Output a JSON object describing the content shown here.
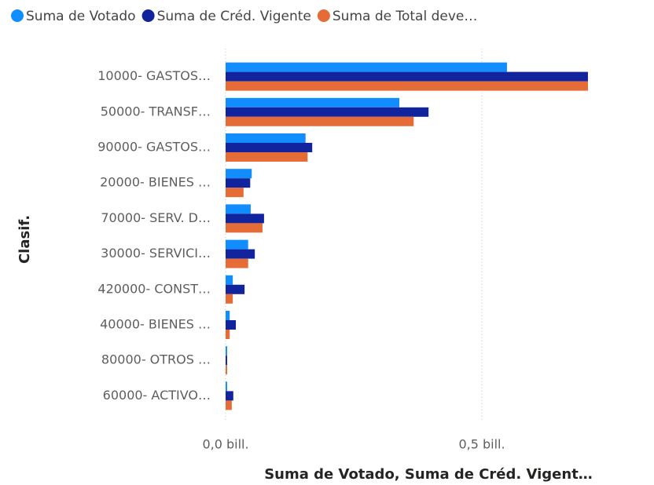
{
  "chart_data": {
    "type": "bar",
    "orientation": "horizontal",
    "categories": [
      "10000- GASTOS…",
      "50000- TRANSF…",
      "90000- GASTOS…",
      "20000- BIENES …",
      "70000- SERV. D…",
      "30000- SERVICI…",
      "420000- CONST…",
      "40000- BIENES …",
      "80000- OTROS …",
      "60000- ACTIVO…"
    ],
    "series": [
      {
        "name": "Suma de Votado",
        "color": "#118DFF",
        "values": [
          0.549,
          0.339,
          0.156,
          0.051,
          0.049,
          0.044,
          0.014,
          0.008,
          0.003,
          0.003
        ]
      },
      {
        "name": "Suma de Créd. Vigente",
        "color": "#12239E",
        "values": [
          0.707,
          0.396,
          0.169,
          0.048,
          0.075,
          0.057,
          0.037,
          0.02,
          0.003,
          0.015
        ]
      },
      {
        "name": "Suma de Total deve…",
        "color": "#E66C37",
        "values": [
          0.707,
          0.367,
          0.16,
          0.035,
          0.072,
          0.044,
          0.014,
          0.008,
          0.003,
          0.012
        ]
      }
    ],
    "xlim": [
      0,
      0.8
    ],
    "xticks": [
      {
        "value": 0,
        "label": "0,0 bill."
      },
      {
        "value": 0.5,
        "label": "0,5 bill."
      }
    ],
    "x_label": "Suma de Votado, Suma de Créd. Vigent…",
    "y_label": "Clasif.",
    "grid": true,
    "legend": "top"
  }
}
